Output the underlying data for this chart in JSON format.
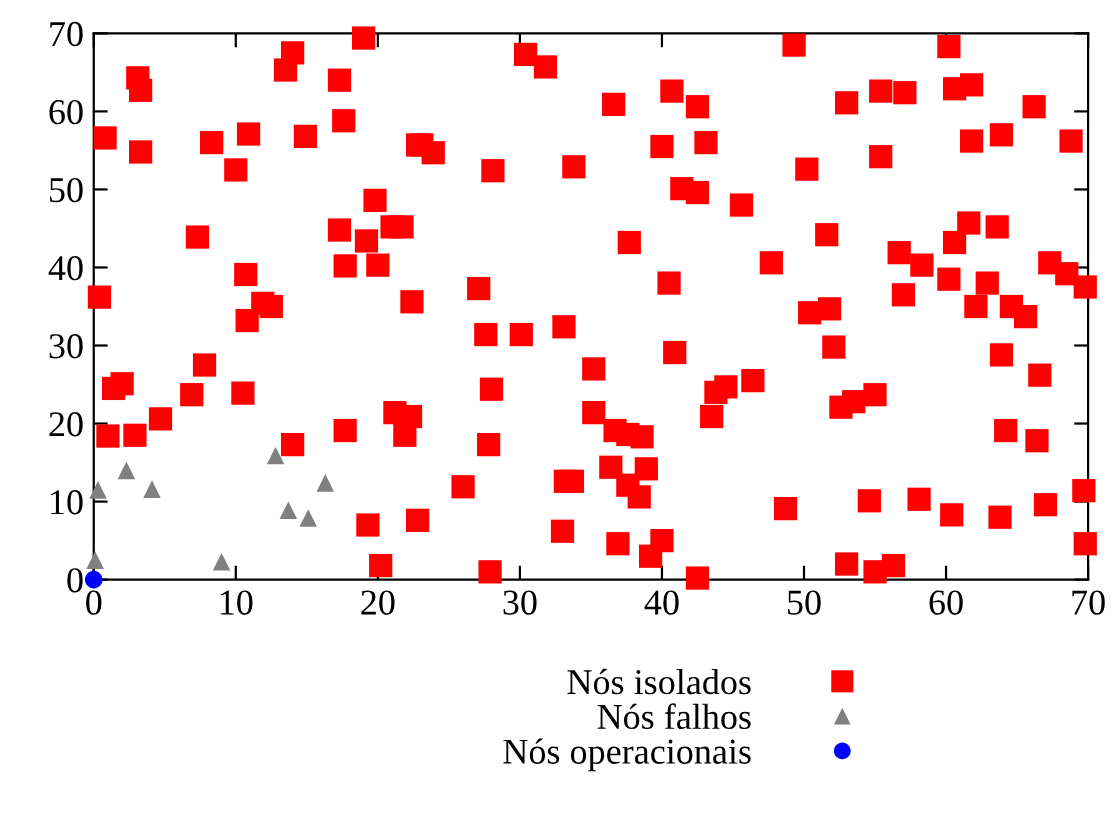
{
  "chart_data": {
    "type": "scatter",
    "xlim": [
      0,
      70
    ],
    "ylim": [
      0,
      70
    ],
    "xticks": [
      0,
      10,
      20,
      30,
      40,
      50,
      60,
      70
    ],
    "yticks": [
      0,
      10,
      20,
      30,
      40,
      50,
      60,
      70
    ],
    "grid": false,
    "legend": "bottom",
    "series": [
      {
        "name": "Nós isolados",
        "color": "#ff0000",
        "marker": "square",
        "x": [
          19.0,
          14.0,
          13.5,
          3.1,
          3.3,
          17.3,
          17.6,
          0.8,
          3.3,
          8.3,
          10.9,
          14.9,
          22.8,
          10.0,
          19.8,
          17.3,
          19.2,
          21.0,
          21.7,
          7.3,
          17.7,
          20.0,
          10.7,
          0.4,
          11.9,
          12.5,
          10.8,
          22.4,
          7.8,
          1.4,
          2.0,
          6.9,
          10.5,
          4.7,
          1.0,
          2.9,
          14.0,
          17.7,
          21.2,
          22.3,
          21.9,
          19.3,
          22.8,
          30.4,
          31.8,
          40.7,
          42.5,
          36.6,
          23.1,
          23.9,
          28.1,
          33.8,
          40.0,
          43.1,
          41.4,
          42.5,
          45.6,
          37.7,
          40.5,
          27.1,
          27.6,
          30.1,
          33.1,
          40.9,
          35.2,
          28.0,
          43.8,
          44.5,
          46.4,
          43.5,
          35.2,
          36.7,
          37.6,
          38.6,
          27.8,
          26.0,
          36.4,
          38.9,
          37.6,
          38.4,
          33.2,
          33.7,
          33.0,
          36.9,
          40.0,
          49.3,
          60.2,
          55.4,
          57.1,
          53.0,
          60.6,
          61.8,
          66.2,
          61.8,
          63.9,
          68.8,
          55.4,
          50.2,
          51.6,
          61.6,
          63.6,
          60.6,
          47.7,
          56.7,
          58.3,
          67.3,
          68.5,
          69.8,
          60.2,
          62.9,
          57.0,
          50.4,
          51.8,
          62.1,
          64.6,
          65.6,
          52.1,
          63.9,
          66.6,
          52.6,
          53.5,
          55.0,
          64.2,
          66.4,
          48.7,
          54.6,
          58.1,
          60.4,
          63.8,
          67.0,
          69.7,
          69.8,
          20.2,
          27.9,
          42.5,
          39.2,
          53.0,
          55.0,
          56.3
        ],
        "values": [
          69.4,
          67.5,
          65.3,
          64.3,
          62.7,
          64.0,
          58.8,
          56.6,
          54.8,
          56.0,
          57.1,
          56.8,
          55.7,
          52.5,
          48.6,
          44.8,
          43.4,
          45.2,
          45.2,
          43.9,
          40.2,
          40.3,
          39.1,
          36.2,
          35.4,
          35.0,
          33.2,
          35.6,
          27.5,
          24.5,
          25.1,
          23.7,
          23.9,
          20.6,
          18.4,
          18.5,
          17.3,
          19.1,
          21.4,
          20.9,
          18.5,
          7.0,
          7.6,
          67.3,
          65.7,
          62.6,
          60.6,
          60.9,
          55.7,
          54.7,
          52.4,
          52.9,
          55.5,
          56.0,
          50.1,
          49.6,
          48.0,
          43.2,
          38.0,
          37.3,
          31.4,
          31.4,
          32.4,
          29.1,
          27.0,
          24.4,
          24.0,
          24.7,
          25.5,
          20.9,
          21.4,
          19.1,
          18.6,
          18.3,
          17.3,
          11.9,
          14.4,
          14.2,
          12.1,
          10.6,
          12.6,
          12.6,
          6.2,
          4.6,
          5.0,
          68.5,
          68.3,
          62.6,
          62.4,
          61.1,
          62.9,
          63.4,
          60.6,
          56.2,
          57.0,
          56.2,
          54.2,
          52.6,
          44.2,
          45.7,
          45.2,
          43.2,
          40.6,
          41.9,
          40.3,
          40.6,
          39.2,
          37.5,
          38.5,
          38.0,
          36.5,
          34.2,
          34.7,
          35.0,
          35.0,
          33.7,
          29.8,
          28.8,
          26.2,
          22.1,
          22.8,
          23.7,
          19.1,
          17.8,
          9.1,
          10.1,
          10.3,
          8.3,
          8.0,
          9.6,
          11.4,
          4.6,
          1.8,
          1.0,
          0.2,
          3.0,
          2.0,
          1.0,
          1.8
        ]
      },
      {
        "name": "Nós falhos",
        "color": "#808080",
        "marker": "triangle",
        "x": [
          0.3,
          2.3,
          4.1,
          12.8,
          16.3,
          13.7,
          15.1,
          0.1,
          9.0
        ],
        "values": [
          11.5,
          14.0,
          11.6,
          15.9,
          12.4,
          8.9,
          7.9,
          2.5,
          2.3
        ]
      },
      {
        "name": "Nós operacionais",
        "color": "#0000ff",
        "marker": "circle",
        "x": [
          0
        ],
        "values": [
          0
        ]
      }
    ]
  }
}
